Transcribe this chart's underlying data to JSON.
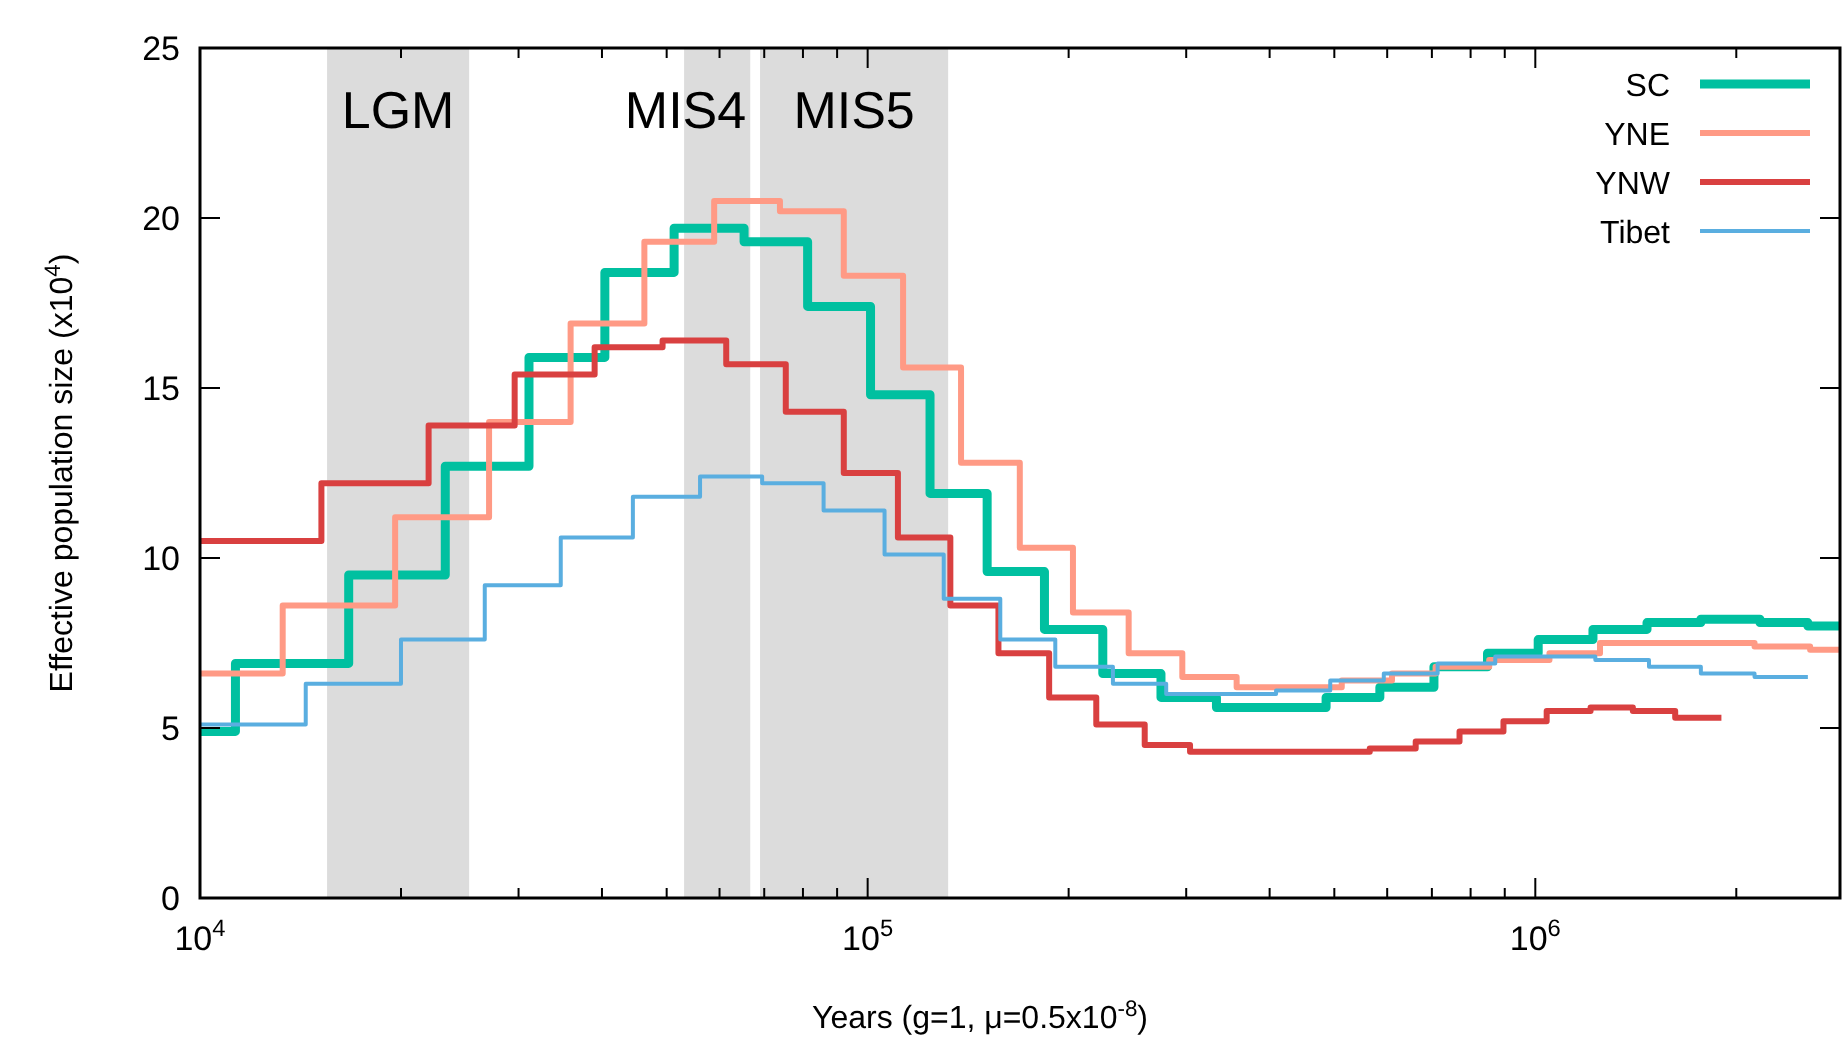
{
  "chart_data": {
    "type": "step",
    "xlabel": "Years (g=1, μ=0.5x10$^{-8}$)",
    "ylabel": "Effective population size (x10$^{4}$)",
    "log": "x",
    "xlim": [
      10000,
      2860000
    ],
    "ylim": [
      0,
      25
    ],
    "xticks": [
      {
        "value": 10000,
        "label": "10$^{4}$"
      },
      {
        "value": 20000,
        "label": null
      },
      {
        "value": 30000,
        "label": null
      },
      {
        "value": 40000,
        "label": null
      },
      {
        "value": 50000,
        "label": null
      },
      {
        "value": 60000,
        "label": null
      },
      {
        "value": 70000,
        "label": null
      },
      {
        "value": 80000,
        "label": null
      },
      {
        "value": 90000,
        "label": null
      },
      {
        "value": 100000,
        "label": "10$^{5}$"
      },
      {
        "value": 200000,
        "label": null
      },
      {
        "value": 300000,
        "label": null
      },
      {
        "value": 400000,
        "label": null
      },
      {
        "value": 500000,
        "label": null
      },
      {
        "value": 600000,
        "label": null
      },
      {
        "value": 700000,
        "label": null
      },
      {
        "value": 800000,
        "label": null
      },
      {
        "value": 900000,
        "label": null
      },
      {
        "value": 1000000,
        "label": "10$^{6}$"
      },
      {
        "value": 2000000,
        "label": null
      }
    ],
    "yticks": [
      0,
      5,
      10,
      15,
      20,
      25
    ],
    "grid": false,
    "legend": "top right",
    "bands": [
      {
        "axis": "x",
        "from": 15500,
        "to": 25300,
        "label": "LGM",
        "color": "#dcdcdc"
      },
      {
        "axis": "x",
        "from": 53100,
        "to": 66700,
        "label": "MIS4",
        "color": "#dcdcdc"
      },
      {
        "axis": "x",
        "from": 69000,
        "to": 132000,
        "label": "MIS5",
        "color": "#dcdcdc"
      }
    ],
    "series": [
      {
        "name": "SC",
        "color": "#00c0a0",
        "x": [
          10000,
          11300,
          16700,
          23300,
          31100,
          40400,
          51300,
          65300,
          81300,
          101000,
          124000,
          151000,
          184000,
          225000,
          275000,
          333000,
          486000,
          585000,
          705000,
          848000,
          1010000,
          1220000,
          1470000,
          1770000,
          2170000,
          2560000,
          2860000
        ],
        "values": [
          4.9,
          6.9,
          9.5,
          12.7,
          15.9,
          18.4,
          19.7,
          19.3,
          17.4,
          14.8,
          11.9,
          9.6,
          7.9,
          6.6,
          5.9,
          5.6,
          5.9,
          6.2,
          6.8,
          7.2,
          7.6,
          7.9,
          8.1,
          8.2,
          8.1,
          8.0,
          8.0
        ]
      },
      {
        "name": "YNE",
        "color": "#ff9a85",
        "x": [
          10000,
          13300,
          19600,
          27100,
          35900,
          46300,
          58900,
          73900,
          92100,
          113000,
          138000,
          169000,
          203000,
          246000,
          296000,
          357000,
          513000,
          610000,
          709000,
          853000,
          1050000,
          1250000,
          2130000,
          2580000,
          2860000
        ],
        "values": [
          6.6,
          8.6,
          11.2,
          14.0,
          16.9,
          19.3,
          20.5,
          20.2,
          18.3,
          15.6,
          12.8,
          10.3,
          8.4,
          7.2,
          6.5,
          6.2,
          6.4,
          6.6,
          6.8,
          7.0,
          7.2,
          7.5,
          7.4,
          7.3,
          7.3
        ]
      },
      {
        "name": "YNW",
        "color": "#d94040",
        "x": [
          10000,
          15200,
          22000,
          29600,
          39000,
          49300,
          61400,
          75400,
          92100,
          111000,
          133000,
          157000,
          187000,
          220000,
          260000,
          304000,
          565000,
          662000,
          770000,
          896000,
          1040000,
          1210000,
          1400000,
          1620000,
          1900000
        ],
        "values": [
          10.5,
          12.2,
          13.9,
          15.4,
          16.2,
          16.4,
          15.7,
          14.3,
          12.5,
          10.6,
          8.6,
          7.2,
          5.9,
          5.1,
          4.5,
          4.3,
          4.4,
          4.6,
          4.9,
          5.2,
          5.5,
          5.6,
          5.5,
          5.3,
          5.3
        ]
      },
      {
        "name": "Tibet",
        "color": "#5aaee0",
        "x": [
          10000,
          14400,
          20000,
          26700,
          34700,
          44500,
          56100,
          69500,
          85900,
          106000,
          130000,
          158000,
          191000,
          233000,
          280000,
          340000,
          409000,
          493000,
          593000,
          714000,
          871000,
          1230000,
          1480000,
          1770000,
          2130000,
          2560000
        ],
        "values": [
          5.1,
          6.3,
          7.6,
          9.2,
          10.6,
          11.8,
          12.4,
          12.2,
          11.4,
          10.1,
          8.8,
          7.6,
          6.8,
          6.3,
          6.0,
          6.0,
          6.1,
          6.4,
          6.6,
          6.9,
          7.1,
          7.0,
          6.8,
          6.6,
          6.5,
          6.5
        ]
      }
    ]
  }
}
